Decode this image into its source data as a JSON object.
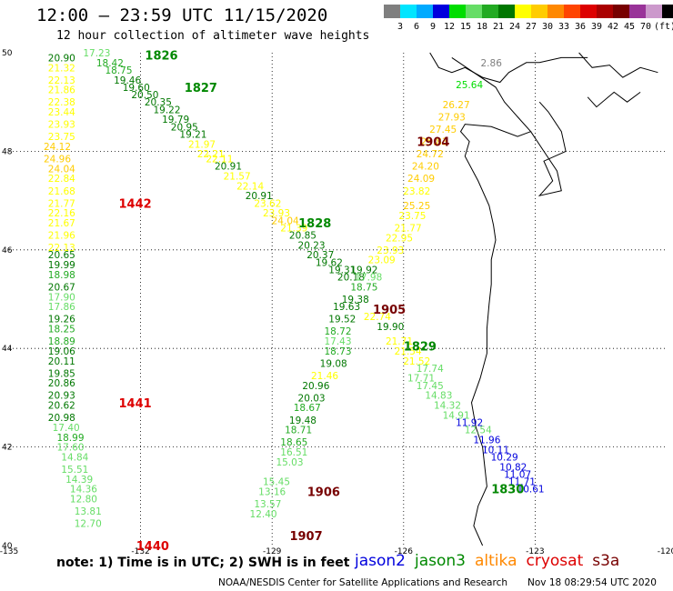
{
  "title": "12:00 – 23:59 UTC 11/15/2020",
  "subtitle": "12 hour collection of altimeter wave heights",
  "legend": {
    "colors": [
      "#7f7f7f",
      "#00e5ff",
      "#00aaff",
      "#0000dd",
      "#00dd00",
      "#66dd66",
      "#22aa22",
      "#007700",
      "#ffff00",
      "#ffcc00",
      "#ff8800",
      "#ff4400",
      "#dd0000",
      "#aa0000",
      "#770000",
      "#993399",
      "#cc99cc",
      "#000000"
    ],
    "labels": [
      "3",
      "6",
      "9",
      "12",
      "15",
      "18",
      "21",
      "24",
      "27",
      "30",
      "33",
      "36",
      "39",
      "42",
      "45",
      "70",
      "(ft)"
    ]
  },
  "latitudes": [
    50,
    48,
    46,
    44,
    42,
    40
  ],
  "longitudes": [
    -135,
    -132,
    -129,
    -126,
    -123,
    -120
  ],
  "note": "note: 1) Time is in UTC; 2) SWH is in feet",
  "satellites": [
    {
      "name": "jason2",
      "color": "#0000dd"
    },
    {
      "name": "jason3",
      "color": "#008800"
    },
    {
      "name": "altika",
      "color": "#ff8800"
    },
    {
      "name": "cryosat",
      "color": "#dd0000"
    },
    {
      "name": "s3a",
      "color": "#770000"
    }
  ],
  "footer_left": "NOAA/NESDIS Center for Satellite Applications and Research",
  "footer_right": "Nov 18 08:29:54 UTC 2020",
  "passes": [
    {
      "label": "1826",
      "color": "#008800",
      "lon": -131.9,
      "lat": 49.95
    },
    {
      "label": "1827",
      "color": "#008800",
      "lon": -131.0,
      "lat": 49.3
    },
    {
      "label": "1442",
      "color": "#dd0000",
      "lon": -132.5,
      "lat": 46.95
    },
    {
      "label": "1828",
      "color": "#008800",
      "lon": -128.4,
      "lat": 46.55
    },
    {
      "label": "1904",
      "color": "#770000",
      "lon": -125.7,
      "lat": 48.2
    },
    {
      "label": "1905",
      "color": "#770000",
      "lon": -126.7,
      "lat": 44.8
    },
    {
      "label": "1829",
      "color": "#008800",
      "lon": -126.0,
      "lat": 44.05
    },
    {
      "label": "1441",
      "color": "#dd0000",
      "lon": -132.5,
      "lat": 42.9
    },
    {
      "label": "1906",
      "color": "#770000",
      "lon": -128.2,
      "lat": 41.1
    },
    {
      "label": "1830",
      "color": "#008800",
      "lon": -124.0,
      "lat": 41.15
    },
    {
      "label": "1907",
      "color": "#770000",
      "lon": -128.6,
      "lat": 40.2
    },
    {
      "label": "1440",
      "color": "#dd0000",
      "lon": -132.1,
      "lat": 40.0
    }
  ],
  "measurements": [
    {
      "v": "17.23",
      "c": "#66dd66",
      "lon": -133.0,
      "lat": 50.0
    },
    {
      "v": "18.42",
      "c": "#22aa22",
      "lon": -132.7,
      "lat": 49.8
    },
    {
      "v": "20.90",
      "c": "#007700",
      "lon": -133.8,
      "lat": 49.9
    },
    {
      "v": "21.32",
      "c": "#ffff00",
      "lon": -133.8,
      "lat": 49.7
    },
    {
      "v": "18.75",
      "c": "#22aa22",
      "lon": -132.5,
      "lat": 49.65
    },
    {
      "v": "22.13",
      "c": "#ffff00",
      "lon": -133.8,
      "lat": 49.45
    },
    {
      "v": "19.46",
      "c": "#007700",
      "lon": -132.3,
      "lat": 49.45
    },
    {
      "v": "21.86",
      "c": "#ffff00",
      "lon": -133.8,
      "lat": 49.25
    },
    {
      "v": "19.60",
      "c": "#007700",
      "lon": -132.1,
      "lat": 49.3
    },
    {
      "v": "20.50",
      "c": "#007700",
      "lon": -131.9,
      "lat": 49.15
    },
    {
      "v": "22.38",
      "c": "#ffff00",
      "lon": -133.8,
      "lat": 49.0
    },
    {
      "v": "20.35",
      "c": "#007700",
      "lon": -131.6,
      "lat": 49.0
    },
    {
      "v": "23.44",
      "c": "#ffff00",
      "lon": -133.8,
      "lat": 48.8
    },
    {
      "v": "19.22",
      "c": "#007700",
      "lon": -131.4,
      "lat": 48.85
    },
    {
      "v": "23.93",
      "c": "#ffff00",
      "lon": -133.8,
      "lat": 48.55
    },
    {
      "v": "19.79",
      "c": "#007700",
      "lon": -131.2,
      "lat": 48.65
    },
    {
      "v": "20.95",
      "c": "#007700",
      "lon": -131.0,
      "lat": 48.5
    },
    {
      "v": "23.75",
      "c": "#ffff00",
      "lon": -133.8,
      "lat": 48.3
    },
    {
      "v": "19.21",
      "c": "#007700",
      "lon": -130.8,
      "lat": 48.35
    },
    {
      "v": "21.97",
      "c": "#ffff00",
      "lon": -130.6,
      "lat": 48.15
    },
    {
      "v": "24.12",
      "c": "#ffcc00",
      "lon": -133.9,
      "lat": 48.1
    },
    {
      "v": "22.21",
      "c": "#ffff00",
      "lon": -130.4,
      "lat": 47.95
    },
    {
      "v": "24.96",
      "c": "#ffcc00",
      "lon": -133.9,
      "lat": 47.85
    },
    {
      "v": "22.11",
      "c": "#ffff00",
      "lon": -130.2,
      "lat": 47.85
    },
    {
      "v": "24.04",
      "c": "#ffcc00",
      "lon": -133.8,
      "lat": 47.65
    },
    {
      "v": "20.91",
      "c": "#007700",
      "lon": -130.0,
      "lat": 47.7
    },
    {
      "v": "22.84",
      "c": "#ffff00",
      "lon": -133.8,
      "lat": 47.45
    },
    {
      "v": "21.57",
      "c": "#ffff00",
      "lon": -129.8,
      "lat": 47.5
    },
    {
      "v": "22.14",
      "c": "#ffff00",
      "lon": -129.5,
      "lat": 47.3
    },
    {
      "v": "21.68",
      "c": "#ffff00",
      "lon": -133.8,
      "lat": 47.2
    },
    {
      "v": "20.91",
      "c": "#007700",
      "lon": -129.3,
      "lat": 47.1
    },
    {
      "v": "21.77",
      "c": "#ffff00",
      "lon": -133.8,
      "lat": 46.95
    },
    {
      "v": "23.62",
      "c": "#ffff00",
      "lon": -129.1,
      "lat": 46.95
    },
    {
      "v": "22.16",
      "c": "#ffff00",
      "lon": -133.8,
      "lat": 46.75
    },
    {
      "v": "23.93",
      "c": "#ffff00",
      "lon": -128.9,
      "lat": 46.75
    },
    {
      "v": "24.04",
      "c": "#ffcc00",
      "lon": -128.7,
      "lat": 46.6
    },
    {
      "v": "21.67",
      "c": "#ffff00",
      "lon": -133.8,
      "lat": 46.55
    },
    {
      "v": "21.39",
      "c": "#ffff00",
      "lon": -128.5,
      "lat": 46.45
    },
    {
      "v": "21.96",
      "c": "#ffff00",
      "lon": -133.8,
      "lat": 46.3
    },
    {
      "v": "20.85",
      "c": "#007700",
      "lon": -128.3,
      "lat": 46.3
    },
    {
      "v": "22.13",
      "c": "#ffff00",
      "lon": -133.8,
      "lat": 46.05
    },
    {
      "v": "20.23",
      "c": "#007700",
      "lon": -128.1,
      "lat": 46.1
    },
    {
      "v": "20.37",
      "c": "#007700",
      "lon": -127.9,
      "lat": 45.9
    },
    {
      "v": "20.65",
      "c": "#007700",
      "lon": -133.8,
      "lat": 45.9
    },
    {
      "v": "19.62",
      "c": "#007700",
      "lon": -127.7,
      "lat": 45.75
    },
    {
      "v": "19.99",
      "c": "#007700",
      "lon": -133.8,
      "lat": 45.7
    },
    {
      "v": "19.31",
      "c": "#007700",
      "lon": -127.4,
      "lat": 45.6
    },
    {
      "v": "19.92",
      "c": "#007700",
      "lon": -126.9,
      "lat": 45.6
    },
    {
      "v": "18.98",
      "c": "#22aa22",
      "lon": -133.8,
      "lat": 45.5
    },
    {
      "v": "20.18",
      "c": "#007700",
      "lon": -127.2,
      "lat": 45.45
    },
    {
      "v": "17.98",
      "c": "#66dd66",
      "lon": -126.8,
      "lat": 45.45
    },
    {
      "v": "20.67",
      "c": "#007700",
      "lon": -133.8,
      "lat": 45.25
    },
    {
      "v": "18.75",
      "c": "#22aa22",
      "lon": -126.9,
      "lat": 45.25
    },
    {
      "v": "17.90",
      "c": "#66dd66",
      "lon": -133.8,
      "lat": 45.05
    },
    {
      "v": "19.38",
      "c": "#007700",
      "lon": -127.1,
      "lat": 45.0
    },
    {
      "v": "17.86",
      "c": "#66dd66",
      "lon": -133.8,
      "lat": 44.85
    },
    {
      "v": "19.63",
      "c": "#007700",
      "lon": -127.3,
      "lat": 44.85
    },
    {
      "v": "19.26",
      "c": "#007700",
      "lon": -133.8,
      "lat": 44.6
    },
    {
      "v": "22.74",
      "c": "#ffff00",
      "lon": -126.6,
      "lat": 44.65
    },
    {
      "v": "19.52",
      "c": "#007700",
      "lon": -127.4,
      "lat": 44.6
    },
    {
      "v": "18.25",
      "c": "#22aa22",
      "lon": -133.8,
      "lat": 44.4
    },
    {
      "v": "19.90",
      "c": "#007700",
      "lon": -126.3,
      "lat": 44.45
    },
    {
      "v": "18.72",
      "c": "#22aa22",
      "lon": -127.5,
      "lat": 44.35
    },
    {
      "v": "18.89",
      "c": "#22aa22",
      "lon": -133.8,
      "lat": 44.15
    },
    {
      "v": "17.43",
      "c": "#66dd66",
      "lon": -127.5,
      "lat": 44.15
    },
    {
      "v": "21.71",
      "c": "#ffff00",
      "lon": -126.1,
      "lat": 44.15
    },
    {
      "v": "19.06",
      "c": "#007700",
      "lon": -133.8,
      "lat": 43.95
    },
    {
      "v": "18.73",
      "c": "#22aa22",
      "lon": -127.5,
      "lat": 43.95
    },
    {
      "v": "21.54",
      "c": "#ffff00",
      "lon": -125.9,
      "lat": 43.95
    },
    {
      "v": "20.11",
      "c": "#007700",
      "lon": -133.8,
      "lat": 43.75
    },
    {
      "v": "21.52",
      "c": "#ffff00",
      "lon": -125.7,
      "lat": 43.75
    },
    {
      "v": "19.08",
      "c": "#007700",
      "lon": -127.6,
      "lat": 43.7
    },
    {
      "v": "17.74",
      "c": "#66dd66",
      "lon": -125.4,
      "lat": 43.6
    },
    {
      "v": "19.85",
      "c": "#007700",
      "lon": -133.8,
      "lat": 43.5
    },
    {
      "v": "21.46",
      "c": "#ffff00",
      "lon": -127.8,
      "lat": 43.45
    },
    {
      "v": "17.71",
      "c": "#66dd66",
      "lon": -125.6,
      "lat": 43.4
    },
    {
      "v": "20.86",
      "c": "#007700",
      "lon": -133.8,
      "lat": 43.3
    },
    {
      "v": "20.96",
      "c": "#007700",
      "lon": -128.0,
      "lat": 43.25
    },
    {
      "v": "17.45",
      "c": "#66dd66",
      "lon": -125.4,
      "lat": 43.25
    },
    {
      "v": "14.83",
      "c": "#66dd66",
      "lon": -125.2,
      "lat": 43.05
    },
    {
      "v": "20.93",
      "c": "#007700",
      "lon": -133.8,
      "lat": 43.05
    },
    {
      "v": "20.03",
      "c": "#007700",
      "lon": -128.1,
      "lat": 43.0
    },
    {
      "v": "14.32",
      "c": "#66dd66",
      "lon": -125.0,
      "lat": 42.85
    },
    {
      "v": "20.62",
      "c": "#007700",
      "lon": -133.8,
      "lat": 42.85
    },
    {
      "v": "18.67",
      "c": "#22aa22",
      "lon": -128.2,
      "lat": 42.8
    },
    {
      "v": "14.91",
      "c": "#66dd66",
      "lon": -124.8,
      "lat": 42.65
    },
    {
      "v": "20.98",
      "c": "#007700",
      "lon": -133.8,
      "lat": 42.6
    },
    {
      "v": "19.48",
      "c": "#007700",
      "lon": -128.3,
      "lat": 42.55
    },
    {
      "v": "11.92",
      "c": "#0000dd",
      "lon": -124.5,
      "lat": 42.5
    },
    {
      "v": "17.40",
      "c": "#66dd66",
      "lon": -133.7,
      "lat": 42.4
    },
    {
      "v": "18.71",
      "c": "#22aa22",
      "lon": -128.4,
      "lat": 42.35
    },
    {
      "v": "12.54",
      "c": "#66dd66",
      "lon": -124.3,
      "lat": 42.35
    },
    {
      "v": "18.99",
      "c": "#22aa22",
      "lon": -133.6,
      "lat": 42.2
    },
    {
      "v": "11.96",
      "c": "#0000dd",
      "lon": -124.1,
      "lat": 42.15
    },
    {
      "v": "18.65",
      "c": "#22aa22",
      "lon": -128.5,
      "lat": 42.1
    },
    {
      "v": "17.60",
      "c": "#66dd66",
      "lon": -133.6,
      "lat": 42.0
    },
    {
      "v": "10.11",
      "c": "#0000dd",
      "lon": -123.9,
      "lat": 41.95
    },
    {
      "v": "16.51",
      "c": "#66dd66",
      "lon": -128.5,
      "lat": 41.9
    },
    {
      "v": "14.84",
      "c": "#66dd66",
      "lon": -133.5,
      "lat": 41.8
    },
    {
      "v": "10.29",
      "c": "#0000dd",
      "lon": -123.7,
      "lat": 41.8
    },
    {
      "v": "15.03",
      "c": "#66dd66",
      "lon": -128.6,
      "lat": 41.7
    },
    {
      "v": "10.82",
      "c": "#0000dd",
      "lon": -123.5,
      "lat": 41.6
    },
    {
      "v": "15.51",
      "c": "#66dd66",
      "lon": -133.5,
      "lat": 41.55
    },
    {
      "v": "11.07",
      "c": "#0000dd",
      "lon": -123.4,
      "lat": 41.45
    },
    {
      "v": "14.39",
      "c": "#66dd66",
      "lon": -133.4,
      "lat": 41.35
    },
    {
      "v": "15.45",
      "c": "#66dd66",
      "lon": -128.9,
      "lat": 41.3
    },
    {
      "v": "11.71",
      "c": "#0000dd",
      "lon": -123.3,
      "lat": 41.3
    },
    {
      "v": "14.36",
      "c": "#66dd66",
      "lon": -133.3,
      "lat": 41.15
    },
    {
      "v": "13.16",
      "c": "#66dd66",
      "lon": -129.0,
      "lat": 41.1
    },
    {
      "v": "10.61",
      "c": "#0000dd",
      "lon": -123.1,
      "lat": 41.15
    },
    {
      "v": "12.80",
      "c": "#66dd66",
      "lon": -133.3,
      "lat": 40.95
    },
    {
      "v": "13.57",
      "c": "#66dd66",
      "lon": -129.1,
      "lat": 40.85
    },
    {
      "v": "13.81",
      "c": "#66dd66",
      "lon": -133.2,
      "lat": 40.7
    },
    {
      "v": "12.40",
      "c": "#66dd66",
      "lon": -129.2,
      "lat": 40.65
    },
    {
      "v": "12.70",
      "c": "#66dd66",
      "lon": -133.2,
      "lat": 40.45
    },
    {
      "v": "23.09",
      "c": "#ffff00",
      "lon": -126.5,
      "lat": 45.8
    },
    {
      "v": "23.93",
      "c": "#ffff00",
      "lon": -126.3,
      "lat": 46.0
    },
    {
      "v": "22.95",
      "c": "#ffff00",
      "lon": -126.1,
      "lat": 46.25
    },
    {
      "v": "21.77",
      "c": "#ffff00",
      "lon": -125.9,
      "lat": 46.45
    },
    {
      "v": "23.75",
      "c": "#ffff00",
      "lon": -125.8,
      "lat": 46.7
    },
    {
      "v": "25.25",
      "c": "#ffcc00",
      "lon": -125.7,
      "lat": 46.9
    },
    {
      "v": "23.82",
      "c": "#ffff00",
      "lon": -125.7,
      "lat": 47.2
    },
    {
      "v": "24.09",
      "c": "#ffcc00",
      "lon": -125.6,
      "lat": 47.45
    },
    {
      "v": "24.20",
      "c": "#ffcc00",
      "lon": -125.5,
      "lat": 47.7
    },
    {
      "v": "24.72",
      "c": "#ffcc00",
      "lon": -125.4,
      "lat": 47.95
    },
    {
      "v": "25.83",
      "c": "#ffcc00",
      "lon": -125.3,
      "lat": 48.2
    },
    {
      "v": "27.45",
      "c": "#ffcc00",
      "lon": -125.1,
      "lat": 48.45
    },
    {
      "v": "27.93",
      "c": "#ffcc00",
      "lon": -124.9,
      "lat": 48.7
    },
    {
      "v": "26.27",
      "c": "#ffcc00",
      "lon": -124.8,
      "lat": 48.95
    },
    {
      "v": "25.64",
      "c": "#00dd00",
      "lon": -124.5,
      "lat": 49.35
    },
    {
      "v": "2.86",
      "c": "#7f7f7f",
      "lon": -124.0,
      "lat": 49.8
    }
  ],
  "coastline": [
    [
      [
        -124.9,
        49.9
      ],
      [
        -124.4,
        49.6
      ],
      [
        -123.9,
        49.3
      ],
      [
        -123.7,
        49.0
      ],
      [
        -123.4,
        48.7
      ],
      [
        -123.1,
        48.4
      ],
      [
        -123.4,
        48.3
      ],
      [
        -124.0,
        48.5
      ],
      [
        -124.6,
        48.55
      ],
      [
        -124.7,
        48.4
      ],
      [
        -124.5,
        48.2
      ],
      [
        -124.6,
        47.9
      ],
      [
        -124.3,
        47.4
      ],
      [
        -124.05,
        46.9
      ],
      [
        -123.95,
        46.5
      ],
      [
        -123.9,
        46.2
      ],
      [
        -124.0,
        45.8
      ],
      [
        -124.0,
        45.3
      ],
      [
        -124.05,
        44.9
      ],
      [
        -124.1,
        44.4
      ],
      [
        -124.1,
        43.9
      ],
      [
        -124.25,
        43.4
      ],
      [
        -124.45,
        42.9
      ],
      [
        -124.35,
        42.4
      ],
      [
        -124.2,
        42.0
      ],
      [
        -124.15,
        41.6
      ],
      [
        -124.1,
        41.2
      ],
      [
        -124.3,
        40.8
      ],
      [
        -124.4,
        40.4
      ],
      [
        -124.2,
        40.0
      ]
    ],
    [
      [
        -125.4,
        50.0
      ],
      [
        -125.2,
        49.7
      ],
      [
        -124.9,
        49.6
      ],
      [
        -124.6,
        49.7
      ],
      [
        -124.2,
        49.5
      ],
      [
        -123.8,
        49.4
      ],
      [
        -123.6,
        49.6
      ],
      [
        -123.2,
        49.8
      ],
      [
        -122.9,
        49.8
      ],
      [
        -122.4,
        49.9
      ],
      [
        -121.8,
        49.9
      ]
    ],
    [
      [
        -123.1,
        48.4
      ],
      [
        -122.8,
        48.0
      ],
      [
        -122.5,
        47.6
      ],
      [
        -122.4,
        47.2
      ],
      [
        -122.9,
        47.1
      ],
      [
        -122.6,
        47.4
      ],
      [
        -122.8,
        47.8
      ],
      [
        -122.3,
        48.0
      ],
      [
        -122.4,
        48.4
      ],
      [
        -122.7,
        48.8
      ],
      [
        -122.9,
        49.0
      ]
    ],
    [
      [
        -121.8,
        49.1
      ],
      [
        -121.6,
        48.9
      ],
      [
        -121.2,
        49.2
      ],
      [
        -120.9,
        49.0
      ],
      [
        -120.6,
        49.2
      ]
    ],
    [
      [
        -122.0,
        50.0
      ],
      [
        -121.7,
        49.7
      ],
      [
        -121.3,
        49.75
      ],
      [
        -121.0,
        49.5
      ],
      [
        -120.6,
        49.7
      ],
      [
        -120.2,
        49.6
      ]
    ]
  ]
}
